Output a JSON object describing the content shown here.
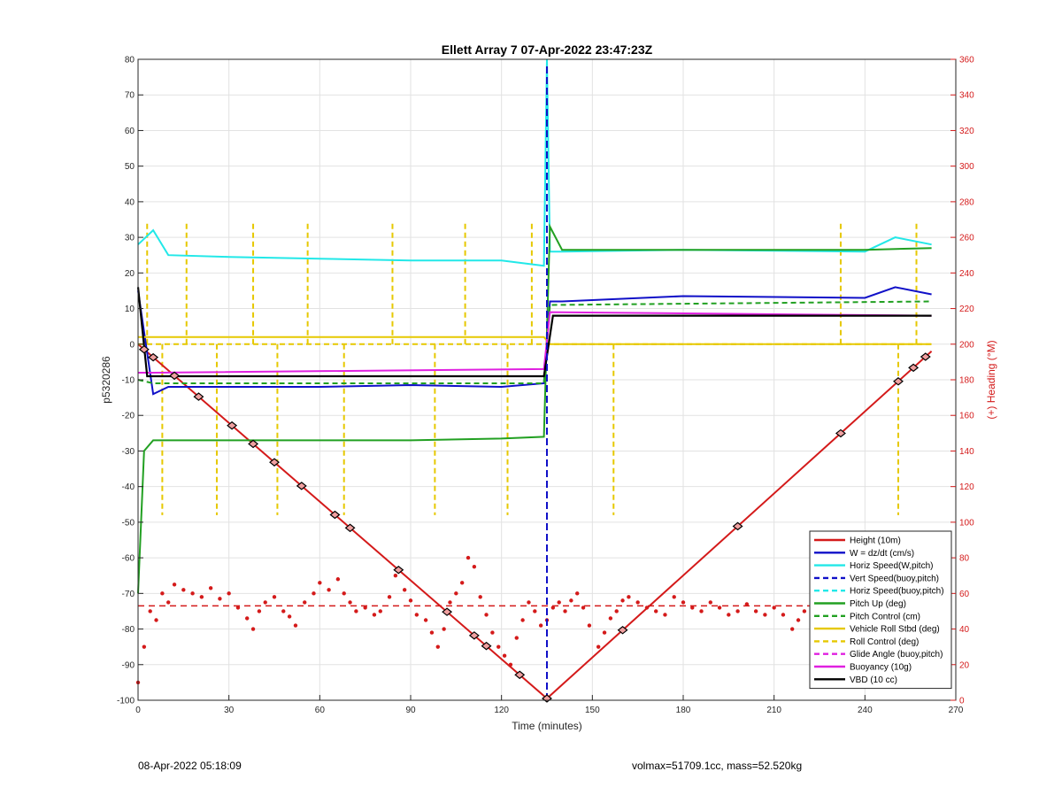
{
  "footer": {
    "left": "08-Apr-2022 05:18:09",
    "right": "volmax=51709.1cc, mass=52.520kg"
  },
  "chart_data": {
    "type": "line",
    "title": "Ellett Array 7 07-Apr-2022 23:47:23Z",
    "xlabel": "Time (minutes)",
    "ylabel": "p5320286",
    "y2label": "(+) Heading (°M)",
    "xlim": [
      0,
      270
    ],
    "ylim": [
      -100,
      80
    ],
    "y2lim": [
      0,
      360
    ],
    "x_ticks": [
      "0",
      "30",
      "60",
      "90",
      "120",
      "150",
      "180",
      "210",
      "240",
      "270"
    ],
    "y_ticks": [
      "80",
      "70",
      "60",
      "50",
      "40",
      "30",
      "20",
      "10",
      "0",
      "-10",
      "-20",
      "-30",
      "-40",
      "-50",
      "-60",
      "-70",
      "-80",
      "-90",
      "-100"
    ],
    "y2_ticks": [
      "360",
      "340",
      "320",
      "300",
      "280",
      "260",
      "240",
      "220",
      "200",
      "180",
      "160",
      "140",
      "120",
      "100",
      "80",
      "60",
      "40",
      "20",
      "0"
    ],
    "grid": true,
    "legend_position": "bottom-right",
    "colors": {
      "height": "#d41a1a",
      "w": "#1010c8",
      "horiz": "#22e8e8",
      "vert": "#1010c8",
      "pitch": "#22a022",
      "roll": "#e6c800",
      "buoy": "#e020e0",
      "vbd": "#000000"
    },
    "series": [
      {
        "name": "Height (10m)",
        "x": [
          0,
          135,
          262
        ],
        "values": [
          0,
          -99.5,
          -2
        ]
      },
      {
        "name": "W = dz/dt (cm/s)",
        "x": [
          0,
          5,
          10,
          30,
          60,
          90,
          120,
          134,
          136,
          140,
          180,
          240,
          250,
          262
        ],
        "values": [
          15,
          -14,
          -12,
          -12,
          -12,
          -11.5,
          -12,
          -11,
          12,
          12,
          13.5,
          13,
          16,
          14
        ]
      },
      {
        "name": "Horiz Speed(W,pitch)",
        "x": [
          0,
          5,
          10,
          30,
          60,
          90,
          120,
          134,
          135,
          136,
          140,
          180,
          240,
          250,
          262
        ],
        "values": [
          28,
          32,
          25,
          24.5,
          24,
          23.5,
          23.5,
          22,
          80,
          26,
          26,
          26.5,
          26,
          30,
          28
        ]
      },
      {
        "name": "Vert Speed(buoy,pitch)",
        "x": [
          0,
          1
        ],
        "values": [
          0,
          0
        ]
      },
      {
        "name": "Horiz Speed(buoy,pitch)",
        "x": [
          0,
          1
        ],
        "values": [
          0,
          0
        ]
      },
      {
        "name": "Pitch Up (deg)",
        "x": [
          0,
          2,
          5,
          30,
          60,
          90,
          120,
          134,
          136,
          140,
          180,
          240,
          262
        ],
        "values": [
          -70,
          -30,
          -27,
          -27,
          -27,
          -27,
          -26.5,
          -26,
          33,
          26.5,
          26.5,
          26.5,
          27
        ]
      },
      {
        "name": "Pitch Control (cm)",
        "x": [
          0,
          5,
          134,
          136,
          262
        ],
        "values": [
          -10,
          -11,
          -11,
          11,
          12
        ]
      },
      {
        "name": "Vehicle Roll Stbd (deg)",
        "x": [
          0,
          5,
          30,
          60,
          90,
          120,
          134,
          136,
          180,
          240,
          262
        ],
        "values": [
          2,
          2,
          2,
          2,
          2,
          2,
          2,
          0,
          0,
          0,
          0
        ]
      },
      {
        "name": "Roll Control (deg)",
        "x": [
          0,
          5,
          134,
          136,
          262
        ],
        "values": [
          0,
          0,
          0,
          0,
          0
        ]
      },
      {
        "name": "Glide Angle (buoy,pitch)",
        "x": [
          0,
          1
        ],
        "values": [
          0,
          0
        ]
      },
      {
        "name": "Buoyancy (10g)",
        "x": [
          0,
          5,
          134,
          136,
          262
        ],
        "values": [
          -8,
          -8,
          -7,
          9,
          8
        ]
      },
      {
        "name": "VBD (10 cc)",
        "x": [
          0,
          3,
          134,
          137,
          262
        ],
        "values": [
          16,
          -9,
          -9,
          8,
          8
        ]
      }
    ],
    "heading_mean": 53,
    "heading": [
      [
        0,
        10
      ],
      [
        2,
        30
      ],
      [
        4,
        50
      ],
      [
        6,
        45
      ],
      [
        8,
        60
      ],
      [
        10,
        55
      ],
      [
        12,
        65
      ],
      [
        15,
        62
      ],
      [
        18,
        60
      ],
      [
        21,
        58
      ],
      [
        24,
        63
      ],
      [
        27,
        57
      ],
      [
        30,
        60
      ],
      [
        33,
        52
      ],
      [
        36,
        46
      ],
      [
        38,
        40
      ],
      [
        40,
        50
      ],
      [
        42,
        55
      ],
      [
        45,
        58
      ],
      [
        48,
        50
      ],
      [
        50,
        47
      ],
      [
        52,
        42
      ],
      [
        55,
        55
      ],
      [
        58,
        60
      ],
      [
        60,
        66
      ],
      [
        63,
        62
      ],
      [
        66,
        68
      ],
      [
        68,
        60
      ],
      [
        70,
        55
      ],
      [
        72,
        50
      ],
      [
        75,
        52
      ],
      [
        78,
        48
      ],
      [
        80,
        50
      ],
      [
        83,
        58
      ],
      [
        85,
        70
      ],
      [
        88,
        62
      ],
      [
        90,
        56
      ],
      [
        92,
        48
      ],
      [
        95,
        45
      ],
      [
        97,
        38
      ],
      [
        99,
        30
      ],
      [
        101,
        40
      ],
      [
        103,
        55
      ],
      [
        105,
        60
      ],
      [
        107,
        66
      ],
      [
        109,
        80
      ],
      [
        111,
        75
      ],
      [
        113,
        58
      ],
      [
        115,
        48
      ],
      [
        117,
        38
      ],
      [
        119,
        30
      ],
      [
        121,
        25
      ],
      [
        123,
        20
      ],
      [
        125,
        35
      ],
      [
        127,
        45
      ],
      [
        129,
        55
      ],
      [
        131,
        50
      ],
      [
        133,
        42
      ],
      [
        135,
        45
      ],
      [
        137,
        52
      ],
      [
        139,
        55
      ],
      [
        141,
        50
      ],
      [
        143,
        56
      ],
      [
        145,
        60
      ],
      [
        147,
        52
      ],
      [
        149,
        42
      ],
      [
        152,
        30
      ],
      [
        154,
        38
      ],
      [
        156,
        46
      ],
      [
        158,
        50
      ],
      [
        160,
        56
      ],
      [
        162,
        58
      ],
      [
        165,
        55
      ],
      [
        168,
        52
      ],
      [
        171,
        50
      ],
      [
        174,
        48
      ],
      [
        177,
        58
      ],
      [
        180,
        55
      ],
      [
        183,
        52
      ],
      [
        186,
        50
      ],
      [
        189,
        55
      ],
      [
        192,
        52
      ],
      [
        195,
        48
      ],
      [
        198,
        50
      ],
      [
        201,
        54
      ],
      [
        204,
        50
      ],
      [
        207,
        48
      ],
      [
        210,
        52
      ],
      [
        213,
        48
      ],
      [
        216,
        40
      ],
      [
        218,
        45
      ],
      [
        220,
        50
      ],
      [
        223,
        52
      ],
      [
        226,
        46
      ],
      [
        229,
        48
      ],
      [
        232,
        42
      ],
      [
        235,
        48
      ],
      [
        238,
        44
      ],
      [
        241,
        50
      ],
      [
        244,
        52
      ],
      [
        247,
        48
      ],
      [
        250,
        46
      ],
      [
        253,
        50
      ],
      [
        256,
        52
      ],
      [
        259,
        48
      ],
      [
        262,
        50
      ]
    ],
    "heading_colors": [
      "#d41a1a"
    ]
  }
}
